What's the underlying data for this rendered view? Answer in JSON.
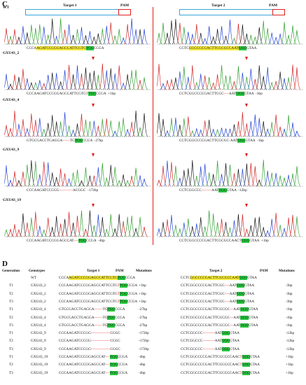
{
  "panel_c": {
    "letter": "C",
    "wt_label": "WT",
    "target1_label": "Target 1",
    "target2_label": "Target 2",
    "pam_label": "PAM",
    "samples": [
      {
        "name": "WT",
        "left": {
          "pre": "CCCA",
          "yellow": "AGATCCCGGAGCCATTCGTG",
          "green": "TGG",
          "post": "CCGA",
          "note": ""
        },
        "right": {
          "pre": "CCTC",
          "yellow": "GGCCCCGACTTCGCGCCAAT",
          "green": "GGG",
          "post": "GTAA",
          "note": ""
        }
      },
      {
        "name": "GXU43_2",
        "left": {
          "pre": "CCCAAGATCCCGGAGCCATTCGTG",
          "red": "T",
          "green": "TGG",
          "post": "CCGA",
          "note": "+1bp"
        },
        "right": {
          "pre": "CCTCGGCCCCGACTTCGC",
          "red": "----",
          "mid": "AAT",
          "green": "GGG",
          "post": "GTAA",
          "note": "-3bp"
        }
      },
      {
        "name": "GXU43_4",
        "left": {
          "pre": "GTGCGACCTGAGGA",
          "red": "------",
          "mid": "TG",
          "green": "TGG",
          "post": "CCGA",
          "note": "-27bp"
        },
        "right": {
          "pre": "CCTCGGCCCCGACTTCGCGC",
          "red": "-",
          "mid": "AAT",
          "green": "GGG",
          "post": "GTAA",
          "note": "-1bp"
        }
      },
      {
        "name": "GXU43_9",
        "left": {
          "pre": "CCCAAGATCCCGG",
          "red": "-----------",
          "mid": "ACGGC",
          "green": "",
          "post": "",
          "note": "-172bp"
        },
        "right": {
          "pre": "CCTCGGCCC",
          "red": "--------",
          "mid": "AAT",
          "green": "GGG",
          "post": "GTAA",
          "note": "-12bp"
        }
      },
      {
        "name": "GXU43_19",
        "left": {
          "pre": "CCCAAGATCCCGGAGCCAT",
          "red": "----",
          "mid": "",
          "green": "TGG",
          "post": "CCGA",
          "note": "-4bp"
        },
        "right": {
          "pre": "CCTCGGCCCCGACTTCGCGCCAACT",
          "red": "",
          "mid": "",
          "green": "GGG",
          "post": "GTAA",
          "note": "+1bp"
        }
      }
    ]
  },
  "panel_d": {
    "letter": "D",
    "headers": {
      "generation": "Generation",
      "genotypes": "Genotypes",
      "target1": "Target 1",
      "pam1": "PAM",
      "mutations1": "Mutations",
      "target2": "Target 2",
      "pam2": "PAM",
      "mutations2": "Mutations"
    },
    "rows": [
      {
        "gen": "",
        "geno": "WT",
        "l_pre": "CCCA",
        "l_y": "AGATCCCGGAGCCATTCGTG",
        "l_red": "",
        "l_mid": "",
        "l_g": "TGG",
        "l_post": "CCGA",
        "l_mut": "",
        "r_pre": "CCTC",
        "r_y": "GGCCCCGACTTCGCGCCAAT",
        "r_red": "",
        "r_mid": "",
        "r_g": "GGG",
        "r_post": "GTAA",
        "r_mut": ""
      },
      {
        "gen": "T1",
        "geno": "GXU43_2",
        "l_pre": "CCCAAGATCCCGGAGCCATTCGTG",
        "l_y": "",
        "l_red": "T",
        "l_mid": "",
        "l_g": "TGG",
        "l_post": "CCGA",
        "l_mut": "+1bp",
        "r_pre": "CCTCGGCCCCGACTTCGC",
        "r_y": "",
        "r_red": "----",
        "r_mid": "AAT",
        "r_g": "GGG",
        "r_post": "GTAA",
        "r_mut": "-3bp"
      },
      {
        "gen": "T2",
        "geno": "GXU43_2",
        "l_pre": "CCCAAGATCCCGGAGCCATTCGTG",
        "l_y": "",
        "l_red": "T",
        "l_mid": "",
        "l_g": "TGG",
        "l_post": "CCGA",
        "l_mut": "+1bp",
        "r_pre": "CCTCGGCCCCGACTTCGC",
        "r_y": "",
        "r_red": "----",
        "r_mid": "AAT",
        "r_g": "GGG",
        "r_post": "GTAA",
        "r_mut": "-3bp"
      },
      {
        "gen": "T3",
        "geno": "GXU43_2",
        "l_pre": "CCCAAGATCCCGGAGCCATTCGTG",
        "l_y": "",
        "l_red": "T",
        "l_mid": "",
        "l_g": "TGG",
        "l_post": "CCGA",
        "l_mut": "+1bp",
        "r_pre": "CCTCGGCCCCGACTTCGC",
        "r_y": "",
        "r_red": "----",
        "r_mid": "AAT",
        "r_g": "GGG",
        "r_post": "GTAA",
        "r_mut": "-3bp"
      },
      {
        "gen": "T1",
        "geno": "GXU43_4",
        "l_pre": "GTGCGACCTGAGGA",
        "l_y": "",
        "l_red": "-------",
        "l_mid": "TG",
        "l_g": "TGG",
        "l_post": "CCGA",
        "l_mut": "-27bp",
        "r_pre": "CCTCGGCCCCGACTTCGCGC",
        "r_y": "",
        "r_red": "---",
        "r_mid": "AAT",
        "r_g": "GGG",
        "r_post": "GTAA",
        "r_mut": "-1bp"
      },
      {
        "gen": "T2",
        "geno": "GXU43_4",
        "l_pre": "GTGCGACCTGAGGA",
        "l_y": "",
        "l_red": "-------",
        "l_mid": "TG",
        "l_g": "TGG",
        "l_post": "CCGA",
        "l_mut": "-27bp",
        "r_pre": "CCTCGGCCCCGACTTCGCGC",
        "r_y": "",
        "r_red": "---",
        "r_mid": "AAT",
        "r_g": "GGG",
        "r_post": "GTAA",
        "r_mut": "-1bp"
      },
      {
        "gen": "T3",
        "geno": "GXU43_4",
        "l_pre": "GTGCGACCTGAGGA",
        "l_y": "",
        "l_red": "-------",
        "l_mid": "TG",
        "l_g": "TGG",
        "l_post": "CCGA",
        "l_mut": "-27bp",
        "r_pre": "CCTCGGCCCCGACTTCGCGC",
        "r_y": "",
        "r_red": "---",
        "r_mid": "AAT",
        "r_g": "GGG",
        "r_post": "GTAA",
        "r_mut": "-1bp"
      },
      {
        "gen": "T1",
        "geno": "GXU43_9",
        "l_pre": "CCCAAGATCCCGG",
        "l_y": "",
        "l_red": "----------------",
        "l_mid": "CGGC",
        "l_g": "",
        "l_post": "",
        "l_mut": "-172bp",
        "r_pre": "CCTCGGCCC",
        "r_y": "",
        "r_red": "----------",
        "r_mid": "AAT",
        "r_g": "GGG",
        "r_post": "GTAA",
        "r_mut": "-12bp"
      },
      {
        "gen": "T2",
        "geno": "GXU43_9",
        "l_pre": "CCCAAGATCCCGG",
        "l_y": "",
        "l_red": "----------------",
        "l_mid": "CGGC",
        "l_g": "",
        "l_post": "",
        "l_mut": "-172bp",
        "r_pre": "CCTCGGCCC",
        "r_y": "",
        "r_red": "----------",
        "r_mid": "AAT",
        "r_g": "GGG",
        "r_post": "GTAA",
        "r_mut": "-12bp"
      },
      {
        "gen": "T3",
        "geno": "GXU43_9",
        "l_pre": "CCCAAGATCCCGG",
        "l_y": "",
        "l_red": "----------------",
        "l_mid": "CGGC",
        "l_g": "",
        "l_post": "",
        "l_mut": "-172bp",
        "r_pre": "CCTCGGCCC",
        "r_y": "",
        "r_red": "----------",
        "r_mid": "AAT",
        "r_g": "GGG",
        "r_post": "GTAA",
        "r_mut": "-12bp"
      },
      {
        "gen": "T1",
        "geno": "GXU43_19",
        "l_pre": "CCCAAGATCCCGGAGCCAT",
        "l_y": "",
        "l_red": "----",
        "l_mid": "",
        "l_g": "TGG",
        "l_post": "CCGA",
        "l_mut": "-4bp",
        "r_pre": "CCTCGGCCCCGACTTCGCGCCAAC",
        "r_y": "",
        "r_red": "T",
        "r_mid": "",
        "r_g": "GGG",
        "r_post": "GTAA",
        "r_mut": "+1bp"
      },
      {
        "gen": "T2",
        "geno": "GXU43_19",
        "l_pre": "CCCAAGATCCCGGAGCCAT",
        "l_y": "",
        "l_red": "----",
        "l_mid": "",
        "l_g": "TGG",
        "l_post": "CCGA",
        "l_mut": "-4bp",
        "r_pre": "CCTCGGCCCCGACTTCGCGCCAAC",
        "r_y": "",
        "r_red": "T",
        "r_mid": "",
        "r_g": "GGG",
        "r_post": "GTAA",
        "r_mut": "+1bp"
      },
      {
        "gen": "T3",
        "geno": "GXU43_19",
        "l_pre": "CCCAAGATCCCGGAGCCAT",
        "l_y": "",
        "l_red": "----",
        "l_mid": "",
        "l_g": "TGG",
        "l_post": "CCGA",
        "l_mut": "-4bp",
        "r_pre": "CCTCGGCCCCGACTTCGCGCCAAC",
        "r_y": "",
        "r_red": "T",
        "r_mid": "",
        "r_g": "GGG",
        "r_post": "GTAA",
        "r_mut": "+1bp"
      }
    ]
  },
  "colors": {
    "yellow": "#f5ea3a",
    "green": "#28c840",
    "red": "#e0201b",
    "box": "#3aa6d8"
  }
}
